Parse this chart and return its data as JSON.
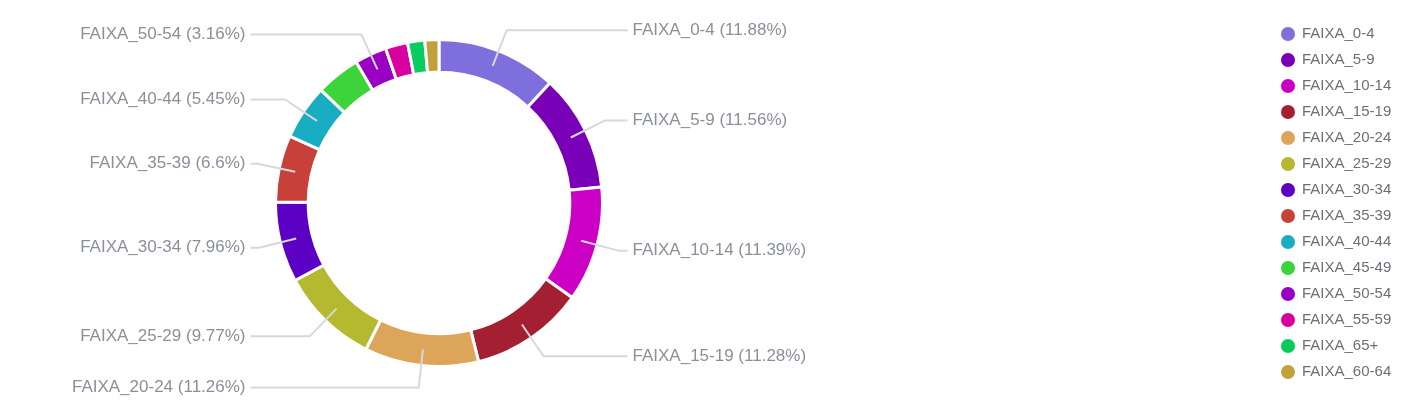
{
  "chart_data": {
    "type": "donut",
    "categories": [
      "FAIXA_0-4",
      "FAIXA_5-9",
      "FAIXA_10-14",
      "FAIXA_15-19",
      "FAIXA_20-24",
      "FAIXA_25-29",
      "FAIXA_30-34",
      "FAIXA_35-39",
      "FAIXA_40-44",
      "FAIXA_45-49",
      "FAIXA_50-54",
      "FAIXA_55-59",
      "FAIXA_65+",
      "FAIXA_60-64"
    ],
    "values": [
      11.88,
      11.56,
      11.39,
      11.28,
      11.26,
      9.77,
      7.96,
      6.6,
      5.45,
      4.4,
      3.16,
      2.2,
      1.7,
      1.39
    ],
    "colors": [
      "#7f6fdc",
      "#7a00b8",
      "#cc00c4",
      "#a51f32",
      "#dda559",
      "#b5b92f",
      "#5b00c4",
      "#c7403a",
      "#18adc3",
      "#3dd43b",
      "#9a00c4",
      "#d8009e",
      "#0acc5e",
      "#c2a13b"
    ],
    "value_labels": [
      "(11.88%)",
      "(11.56%)",
      "(11.39%)",
      "(11.28%)",
      "(11.26%)",
      "(9.77%)",
      "(7.96%)",
      "(6.6%)",
      "(5.45%)",
      null,
      "(3.16%)",
      null,
      null,
      null
    ],
    "legend": "right"
  }
}
